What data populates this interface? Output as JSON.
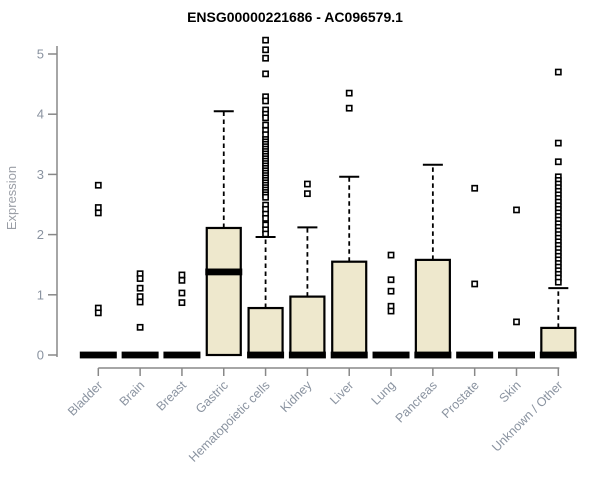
{
  "chart_data": {
    "type": "box",
    "title": "ENSG00000221686 - AC096579.1",
    "xlabel": "",
    "ylabel": "Expression",
    "ylim": [
      0,
      5.3
    ],
    "y_ticks": [
      0,
      1,
      2,
      3,
      4,
      5
    ],
    "grid": false,
    "legend": "none",
    "colors": {
      "box_fill": "#EEE8CD",
      "box_stroke": "#000000",
      "median": "#000000",
      "whisker": "#000000",
      "outlier": "#000000",
      "axis_line": "#888888",
      "axis_text": "#8a93a0"
    },
    "categories": [
      {
        "name": "Bladder",
        "q1": 0,
        "median": 0,
        "q3": 0,
        "whisker_low": 0,
        "whisker_high": 0,
        "outliers": [
          2.82,
          2.45,
          2.36,
          0.78,
          0.7
        ]
      },
      {
        "name": "Brain",
        "q1": 0,
        "median": 0,
        "q3": 0,
        "whisker_low": 0,
        "whisker_high": 0,
        "outliers": [
          1.35,
          1.27,
          1.11,
          0.97,
          0.88,
          0.46
        ]
      },
      {
        "name": "Breast",
        "q1": 0,
        "median": 0,
        "q3": 0,
        "whisker_low": 0,
        "whisker_high": 0,
        "outliers": [
          1.33,
          1.24,
          1.03,
          0.87
        ]
      },
      {
        "name": "Gastric",
        "q1": 0,
        "median": 1.38,
        "q3": 2.11,
        "whisker_low": 0,
        "whisker_high": 4.05,
        "outliers": []
      },
      {
        "name": "Hematopoietic cells",
        "q1": 0,
        "median": 0,
        "q3": 0.78,
        "whisker_low": 0,
        "whisker_high": 1.96,
        "outliers": [
          5.23,
          5.07,
          4.93,
          4.67,
          4.29,
          4.22,
          4.07,
          4.0,
          3.94,
          3.82,
          3.73,
          3.66,
          3.58,
          3.54,
          3.5,
          3.46,
          3.42,
          3.38,
          3.34,
          3.3,
          3.26,
          3.22,
          3.18,
          3.14,
          3.1,
          3.06,
          3.02,
          2.98,
          2.94,
          2.9,
          2.86,
          2.82,
          2.78,
          2.74,
          2.7,
          2.66,
          2.62,
          2.49,
          2.42,
          2.34,
          2.27,
          2.16,
          2.08,
          2.01
        ]
      },
      {
        "name": "Kidney",
        "q1": 0,
        "median": 0,
        "q3": 0.97,
        "whisker_low": 0,
        "whisker_high": 2.12,
        "outliers": [
          2.84,
          2.68
        ]
      },
      {
        "name": "Liver",
        "q1": 0,
        "median": 0,
        "q3": 1.55,
        "whisker_low": 0,
        "whisker_high": 2.96,
        "outliers": [
          4.35,
          4.1
        ]
      },
      {
        "name": "Lung",
        "q1": 0,
        "median": 0,
        "q3": 0,
        "whisker_low": 0,
        "whisker_high": 0,
        "outliers": [
          1.66,
          1.25,
          1.06,
          0.81,
          0.73
        ]
      },
      {
        "name": "Pancreas",
        "q1": 0,
        "median": 0,
        "q3": 1.58,
        "whisker_low": 0,
        "whisker_high": 3.16,
        "outliers": []
      },
      {
        "name": "Prostate",
        "q1": 0,
        "median": 0,
        "q3": 0,
        "whisker_low": 0,
        "whisker_high": 0,
        "outliers": [
          2.77,
          1.18
        ]
      },
      {
        "name": "Skin",
        "q1": 0,
        "median": 0,
        "q3": 0,
        "whisker_low": 0,
        "whisker_high": 0,
        "outliers": [
          2.41,
          0.55
        ]
      },
      {
        "name": "Unknown / Other",
        "q1": 0,
        "median": 0,
        "q3": 0.45,
        "whisker_low": 0,
        "whisker_high": 1.11,
        "outliers": [
          4.7,
          3.52,
          3.21,
          2.96,
          2.9,
          2.84,
          2.78,
          2.72,
          2.66,
          2.6,
          2.54,
          2.48,
          2.42,
          2.36,
          2.3,
          2.24,
          2.18,
          2.12,
          2.06,
          2.0,
          1.94,
          1.88,
          1.82,
          1.76,
          1.7,
          1.64,
          1.58,
          1.52,
          1.46,
          1.4,
          1.34,
          1.28,
          1.21
        ]
      }
    ]
  }
}
